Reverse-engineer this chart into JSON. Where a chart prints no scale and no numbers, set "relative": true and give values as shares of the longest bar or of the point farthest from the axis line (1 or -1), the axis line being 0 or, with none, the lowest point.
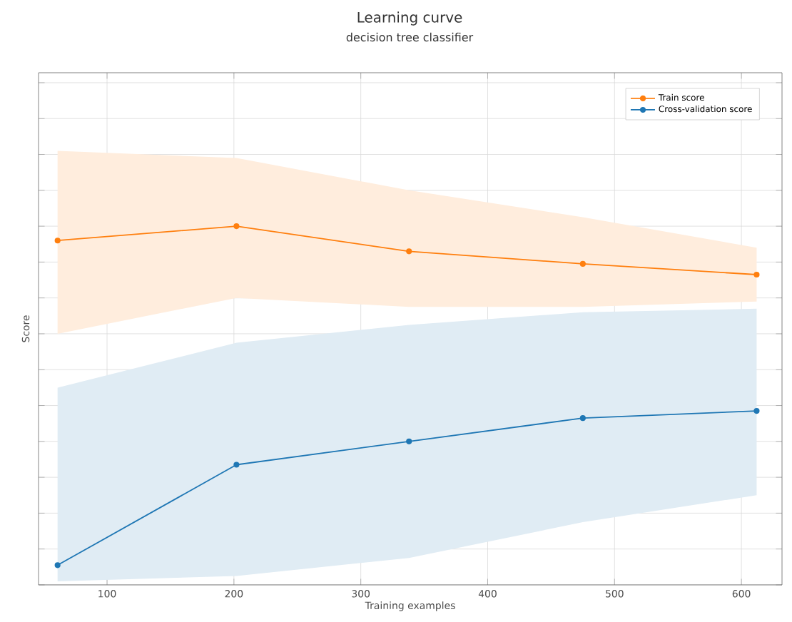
{
  "chart_data": {
    "type": "line",
    "title": "Learning curve",
    "subtitle": "decision tree classifier",
    "xlabel": "Training examples",
    "ylabel": "Score",
    "relative": true,
    "x": [
      61,
      202,
      338,
      475,
      612
    ],
    "xlim": [
      46,
      632
    ],
    "xticks": [
      100,
      200,
      300,
      400,
      500,
      600
    ],
    "grid": true,
    "legend": "top right",
    "marker": "circle",
    "line_style": "solid",
    "series": [
      {
        "name": "Train score",
        "color": "#ff7f0e",
        "values": [
          0.96,
          1.0,
          0.93,
          0.895,
          0.865
        ],
        "lower": [
          0.7,
          0.8,
          0.775,
          0.775,
          0.79
        ],
        "upper": [
          1.21,
          1.19,
          1.1,
          1.025,
          0.94
        ]
      },
      {
        "name": "Cross-validation score",
        "color": "#1f77b4",
        "values": [
          0.055,
          0.335,
          0.4,
          0.465,
          0.485
        ],
        "lower": [
          0.01,
          0.025,
          0.075,
          0.175,
          0.25
        ],
        "upper": [
          0.55,
          0.675,
          0.725,
          0.76,
          0.77
        ]
      }
    ]
  }
}
